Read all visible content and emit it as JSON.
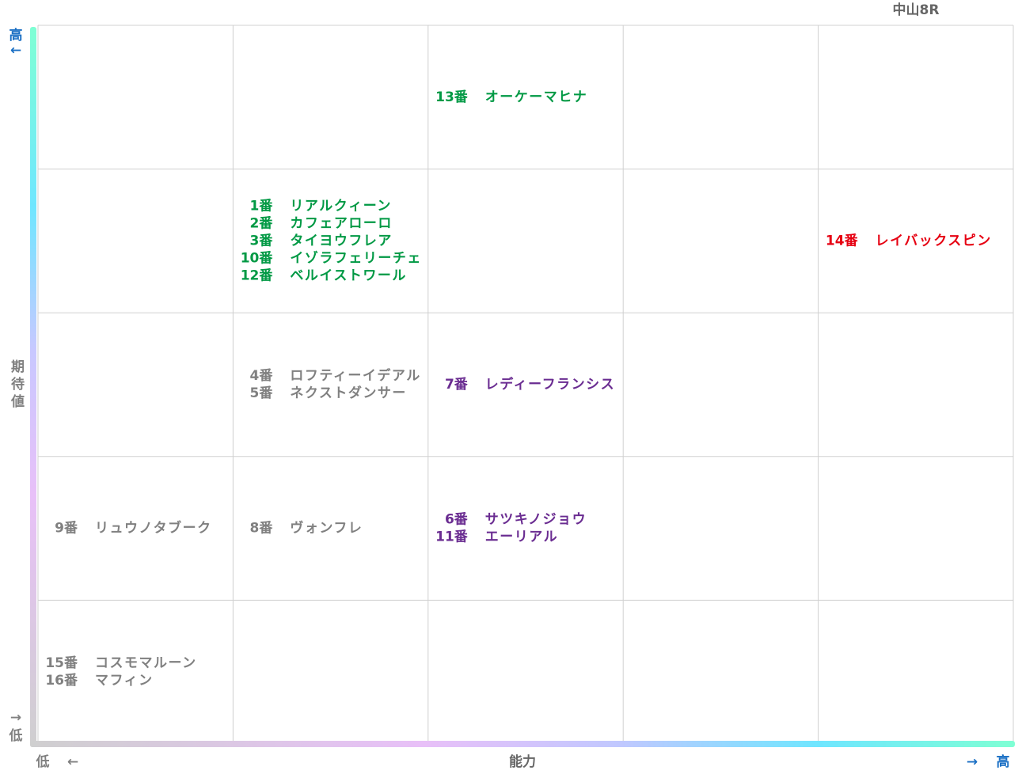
{
  "title": "中山8R",
  "y_axis": {
    "high": "高",
    "high_arrow": "←",
    "label": "期待値",
    "low_arrow": "→",
    "low": "低"
  },
  "x_axis": {
    "low": "低",
    "low_arrow": "←",
    "label": "能力",
    "high_arrow": "→",
    "high": "高"
  },
  "rows": [
    [
      null,
      null,
      {
        "color": "#009944",
        "entries": [
          {
            "number": "13番",
            "name": "オーケーマヒナ"
          }
        ]
      },
      null,
      null
    ],
    [
      null,
      {
        "color": "#009944",
        "entries": [
          {
            "number": "1番",
            "name": "リアルクィーン"
          },
          {
            "number": "2番",
            "name": "カフェアローロ"
          },
          {
            "number": "3番",
            "name": "タイヨウフレア"
          },
          {
            "number": "10番",
            "name": "イゾラフェリーチェ"
          },
          {
            "number": "12番",
            "name": "ベルイストワール"
          }
        ]
      },
      null,
      null,
      {
        "color": "#e60012",
        "entries": [
          {
            "number": "14番",
            "name": "レイバックスピン"
          }
        ]
      }
    ],
    [
      null,
      {
        "color": "#808080",
        "entries": [
          {
            "number": "4番",
            "name": "ロフティーイデアル"
          },
          {
            "number": "5番",
            "name": "ネクストダンサー"
          }
        ]
      },
      {
        "color": "#6a2c91",
        "entries": [
          {
            "number": "7番",
            "name": "レディーフランシス"
          }
        ]
      },
      null,
      null
    ],
    [
      {
        "color": "#808080",
        "entries": [
          {
            "number": "9番",
            "name": "リュウノタブーク"
          }
        ]
      },
      {
        "color": "#808080",
        "entries": [
          {
            "number": "8番",
            "name": "ヴォンフレ"
          }
        ]
      },
      {
        "color": "#6a2c91",
        "entries": [
          {
            "number": "6番",
            "name": "サツキノジョウ"
          },
          {
            "number": "11番",
            "name": "エーリアル"
          }
        ]
      },
      null,
      null
    ],
    [
      {
        "color": "#808080",
        "entries": [
          {
            "number": "15番",
            "name": "コスモマルーン"
          },
          {
            "number": "16番",
            "name": "マフィン"
          }
        ]
      },
      null,
      null,
      null,
      null
    ]
  ]
}
